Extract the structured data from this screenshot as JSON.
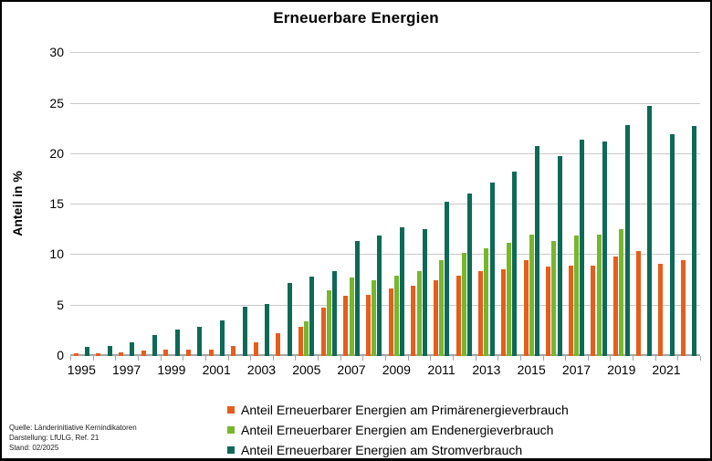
{
  "window": {
    "title": "Erneuerbare Energien"
  },
  "y_axis": {
    "label": "Anteil in %"
  },
  "legend": {
    "items": [
      {
        "label": "Anteil Erneuerbarer Energien am Primärenergieverbrauch",
        "color": "#E55E1C"
      },
      {
        "label": "Anteil Erneuerbarer Energien am Endenergieverbrauch",
        "color": "#78B62E"
      },
      {
        "label": "Anteil Erneuerbarer Energien am Stromverbrauch",
        "color": "#0D6A56"
      }
    ]
  },
  "source": {
    "line1": "Quelle: Länderinitiative Kernindikatoren",
    "line2": "Darstellung: LfULG, Ref. 21",
    "line3": "Stand: 02/2025"
  },
  "chart_data": {
    "type": "bar",
    "title": "Erneuerbare Energien",
    "xlabel": "",
    "ylabel": "Anteil in %",
    "ylim": [
      0,
      30
    ],
    "yticks": [
      0,
      5,
      10,
      15,
      20,
      25,
      30
    ],
    "grid": "horizontal",
    "legend_position": "bottom",
    "categories": [
      1995,
      1996,
      1997,
      1998,
      1999,
      2000,
      2001,
      2002,
      2003,
      2004,
      2005,
      2006,
      2007,
      2008,
      2009,
      2010,
      2011,
      2012,
      2013,
      2014,
      2015,
      2016,
      2017,
      2018,
      2019,
      2020,
      2021,
      2022
    ],
    "x_tick_labels": [
      "1995",
      "1997",
      "1999",
      "2001",
      "2003",
      "2005",
      "2007",
      "2009",
      "2011",
      "2013",
      "2015",
      "2017",
      "2019",
      "2021"
    ],
    "series": [
      {
        "name": "Anteil Erneuerbarer Energien am Primärenergieverbrauch",
        "key": "primaerenergie",
        "color": "#E55E1C",
        "values": [
          0.3,
          0.25,
          0.35,
          0.55,
          0.6,
          0.6,
          0.6,
          1.0,
          1.35,
          2.3,
          2.9,
          4.8,
          6.0,
          6.1,
          6.7,
          7.0,
          7.5,
          8.0,
          8.4,
          8.6,
          9.5,
          8.9,
          9.0,
          9.0,
          9.9,
          10.4,
          9.1,
          9.5
        ]
      },
      {
        "name": "Anteil Erneuerbarer Energien am Endenergieverbrauch",
        "key": "endenergie",
        "color": "#78B62E",
        "values": [
          null,
          null,
          null,
          null,
          null,
          null,
          null,
          null,
          null,
          null,
          3.4,
          6.5,
          7.8,
          7.5,
          8.0,
          8.4,
          9.5,
          10.2,
          10.7,
          11.2,
          12.0,
          11.4,
          11.9,
          12.0,
          12.6,
          null,
          null,
          null
        ]
      },
      {
        "name": "Anteil Erneuerbarer Energien am Stromverbrauch",
        "key": "strom",
        "color": "#0D6A56",
        "values": [
          0.9,
          1.0,
          1.4,
          2.1,
          2.6,
          2.9,
          3.5,
          4.9,
          5.2,
          7.2,
          7.9,
          8.4,
          11.4,
          11.9,
          12.8,
          12.6,
          15.3,
          16.1,
          17.2,
          18.3,
          20.8,
          19.8,
          21.4,
          21.3,
          22.9,
          24.8,
          22.0,
          22.8
        ]
      }
    ]
  }
}
